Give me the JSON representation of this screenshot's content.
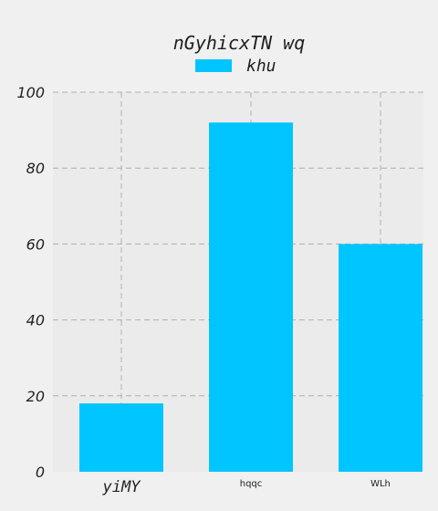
{
  "chart_data": {
    "type": "bar",
    "title": "nGyhicxTN wq",
    "categories": [
      "yiMY",
      "hqqc",
      "WLh"
    ],
    "series": [
      {
        "name": "khu",
        "values": [
          18,
          92,
          60
        ],
        "color": "#00c5ff"
      }
    ],
    "ylim": [
      0,
      100
    ],
    "yticks": [
      0,
      20,
      40,
      60,
      80,
      100
    ],
    "grid": true,
    "legend_position": "top-center",
    "colors": {
      "background": "#f0f0f0",
      "plot_area": "#ebebeb",
      "grid": "#b0b0b0",
      "bar": "#00c5ff"
    }
  }
}
